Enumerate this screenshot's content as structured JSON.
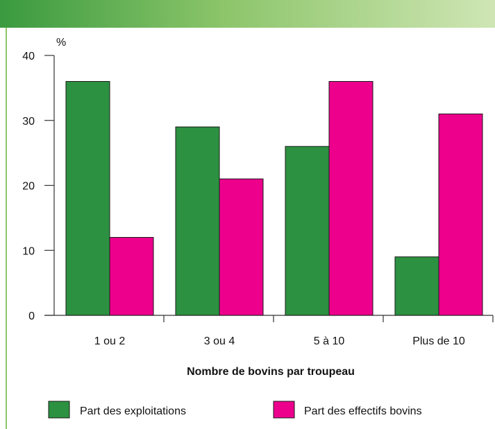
{
  "header": {
    "title": ""
  },
  "colors": {
    "series1": "#2c9140",
    "series2": "#ec008c",
    "header_start": "#3a9a3f",
    "header_end": "#cfe6b4"
  },
  "chart_data": {
    "type": "bar",
    "title": "",
    "ylabel": "%",
    "xlabel": "Nombre de bovins par troupeau",
    "categories": [
      "1 ou 2",
      "3 ou 4",
      "5 à 10",
      "Plus de 10"
    ],
    "ylim": [
      0,
      40
    ],
    "yticks": [
      0,
      10,
      20,
      30,
      40
    ],
    "grid": false,
    "legend_position": "bottom",
    "series": [
      {
        "name": "Part des exploitations",
        "values": [
          36,
          29,
          26,
          9
        ],
        "color": "#2c9140"
      },
      {
        "name": "Part des effectifs bovins",
        "values": [
          12,
          21,
          36,
          31
        ],
        "color": "#ec008c"
      }
    ]
  }
}
